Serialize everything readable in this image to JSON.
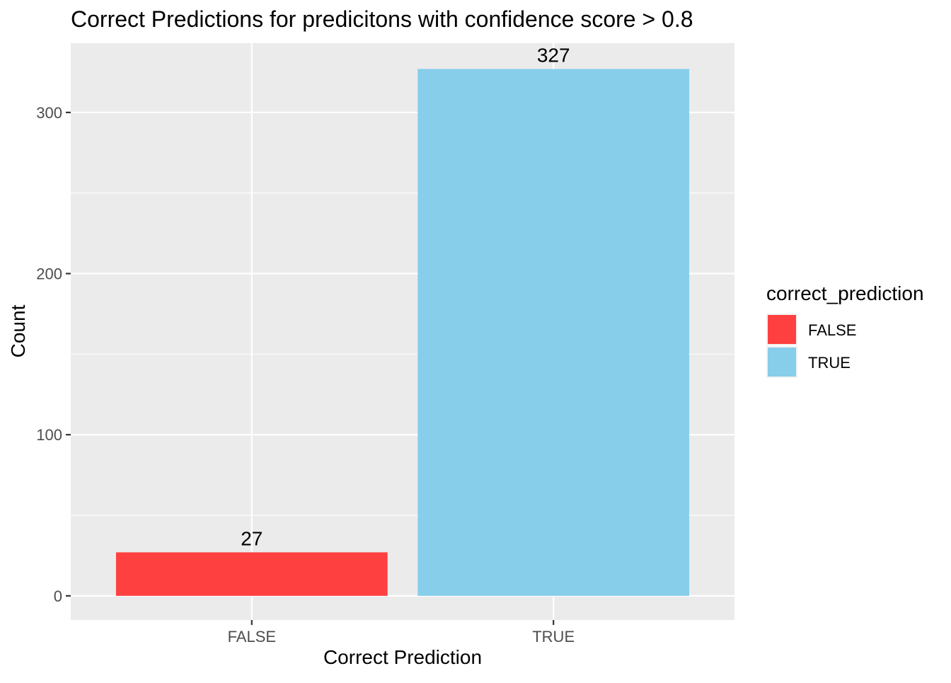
{
  "chart_data": {
    "type": "bar",
    "title": "Correct Predictions for predicitons with confidence score > 0.8",
    "xlabel": "Correct Prediction",
    "ylabel": "Count",
    "categories": [
      "FALSE",
      "TRUE"
    ],
    "values": [
      27,
      327
    ],
    "data_labels": [
      "27",
      "327"
    ],
    "colors": [
      "#ff4040",
      "#87ceeb"
    ],
    "ylim": [
      -15,
      343
    ],
    "yticks": [
      0,
      100,
      200,
      300
    ],
    "grid": true,
    "panel_background": "#ebebeb",
    "legend": {
      "title": "correct_prediction",
      "position": "right",
      "entries": [
        "FALSE",
        "TRUE"
      ]
    }
  }
}
